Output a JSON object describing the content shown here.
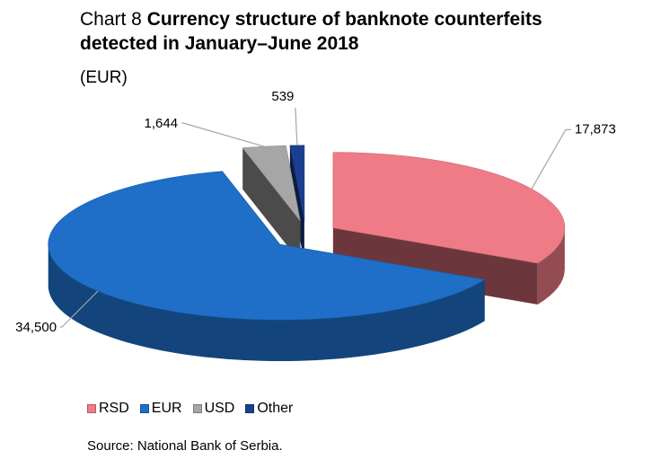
{
  "title": {
    "prefix": "Chart 8",
    "main": "Currency structure of banknote counterfeits detected in January–June 2018"
  },
  "unit": "(EUR)",
  "chart_data": {
    "type": "pie",
    "title": "Chart 8 Currency structure of banknote counterfeits detected in January–June 2018",
    "subtitle": "(EUR)",
    "categories": [
      "RSD",
      "EUR",
      "USD",
      "Other"
    ],
    "values": [
      17873,
      34500,
      1644,
      539
    ],
    "data_labels": [
      "17,873",
      "34,500",
      "1,644",
      "539"
    ],
    "colors": [
      "#ef7b86",
      "#1f6fc8",
      "#a6a6a6",
      "#1a3f8f"
    ],
    "legend_position": "bottom",
    "style": "3d-exploded"
  },
  "legend": [
    {
      "label": "RSD",
      "color": "#ef7b86"
    },
    {
      "label": "EUR",
      "color": "#1f6fc8"
    },
    {
      "label": "USD",
      "color": "#a6a6a6"
    },
    {
      "label": "Other",
      "color": "#1a3f8f"
    }
  ],
  "source": "Source: National Bank of Serbia."
}
